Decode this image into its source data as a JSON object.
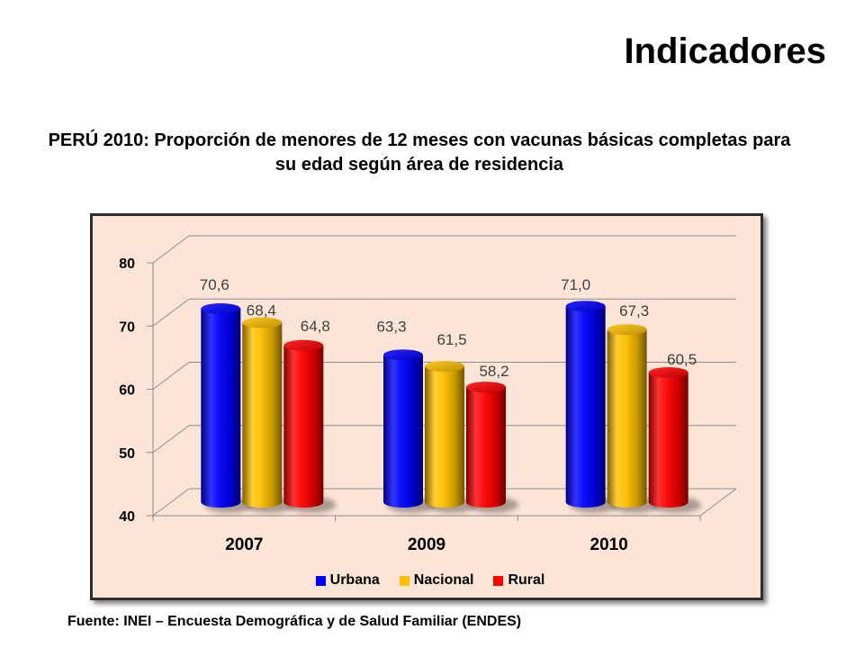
{
  "slide": {
    "title": "Indicadores",
    "source": "Fuente: INEI – Encuesta Demográfica y de Salud Familiar (ENDES)"
  },
  "chart_data": {
    "type": "bar",
    "bar_shape": "3d-cylinder",
    "title_lines": [
      "PERÚ 2010: Proporción de menores de 12 meses con vacunas básicas completas para",
      "su edad según área de residencia"
    ],
    "categories": [
      "2007",
      "2009",
      "2010"
    ],
    "series": [
      {
        "name": "Urbana",
        "color": "#0000FF",
        "values": [
          70.6,
          63.3,
          71.0
        ],
        "data_labels": [
          "70,6",
          "63,3",
          "71,0"
        ]
      },
      {
        "name": "Nacional",
        "color": "#FFC000",
        "values": [
          68.4,
          61.5,
          67.3
        ],
        "data_labels": [
          "68,4",
          "61,5",
          "67,3"
        ]
      },
      {
        "name": "Rural",
        "color": "#FF0000",
        "values": [
          64.8,
          58.2,
          60.5
        ],
        "data_labels": [
          "64,8",
          "58,2",
          "60,5"
        ]
      }
    ],
    "ylim": [
      40,
      80
    ],
    "yticks": [
      40,
      50,
      60,
      70,
      80
    ],
    "grid": true,
    "legend": "bottom",
    "plot_background": "#FCE4D6",
    "data_label_color": "#404040"
  }
}
